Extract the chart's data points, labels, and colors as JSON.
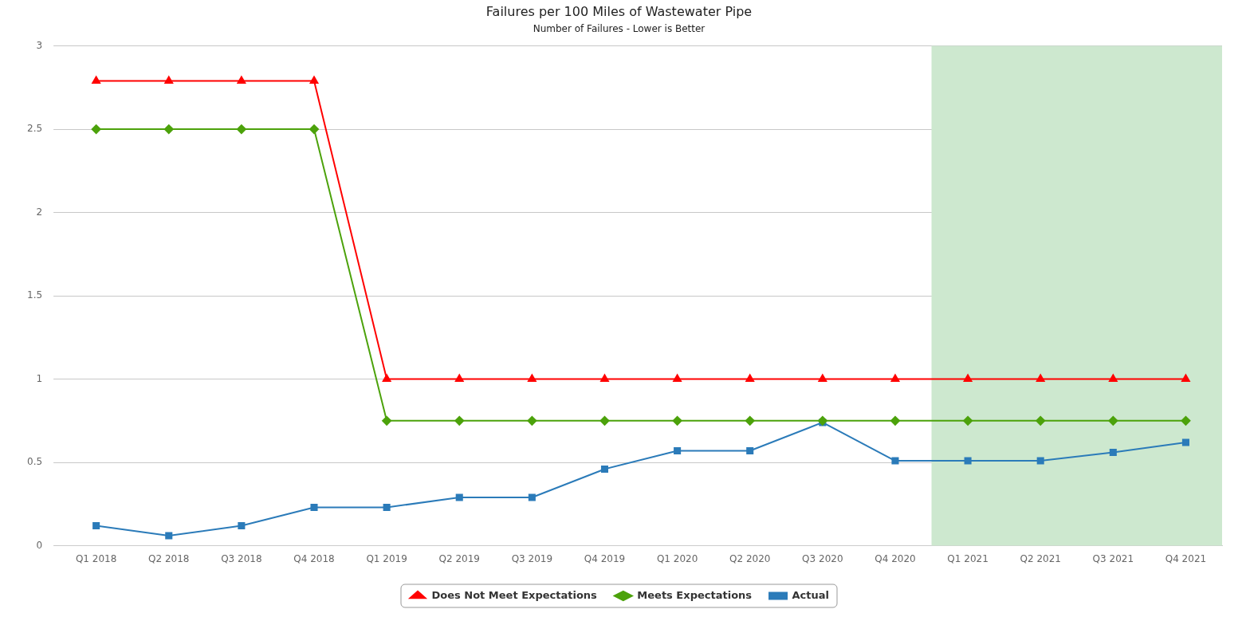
{
  "chart_data": {
    "type": "line",
    "title": "Failures per 100 Miles of Wastewater Pipe",
    "subtitle": "Number of Failures - Lower is Better",
    "categories": [
      "Q1 2018",
      "Q2 2018",
      "Q3 2018",
      "Q4 2018",
      "Q1 2019",
      "Q2 2019",
      "Q3 2019",
      "Q4 2019",
      "Q1 2020",
      "Q2 2020",
      "Q3 2020",
      "Q4 2020",
      "Q1 2021",
      "Q2 2021",
      "Q3 2021",
      "Q4 2021"
    ],
    "series": [
      {
        "name": "Actual",
        "color": "#2b7bb9",
        "marker": "square",
        "values": [
          0.12,
          0.06,
          0.12,
          0.23,
          0.23,
          0.29,
          0.29,
          0.46,
          0.57,
          0.57,
          0.74,
          0.51,
          0.51,
          0.51,
          0.56,
          0.62
        ]
      },
      {
        "name": "Meets Expectations",
        "color": "#4ca20b",
        "marker": "diamond",
        "values": [
          2.5,
          2.5,
          2.5,
          2.5,
          0.75,
          0.75,
          0.75,
          0.75,
          0.75,
          0.75,
          0.75,
          0.75,
          0.75,
          0.75,
          0.75,
          0.75
        ]
      },
      {
        "name": "Does Not Meet Expectations",
        "color": "#ff0000",
        "marker": "triangle",
        "values": [
          2.79,
          2.79,
          2.79,
          2.79,
          1,
          1,
          1,
          1,
          1,
          1,
          1,
          1,
          1,
          1,
          1,
          1
        ]
      }
    ],
    "ylim": [
      0,
      3
    ],
    "yticks": [
      0,
      0.5,
      1,
      1.5,
      2,
      2.5,
      3
    ],
    "grid": "y",
    "legend": "bottom",
    "bands": [
      {
        "axis": "x",
        "from": "Q1 2021",
        "to": "Q4 2021",
        "color": "#cde8cf"
      }
    ]
  }
}
